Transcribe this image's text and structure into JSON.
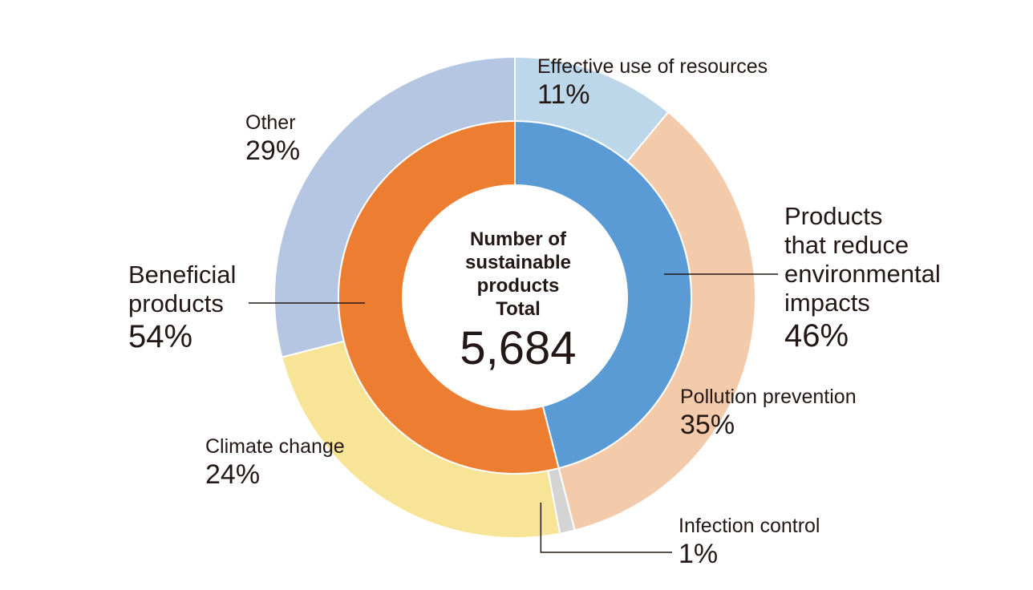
{
  "center": {
    "title": "Number of\nsustainable\nproducts\nTotal",
    "value": "5,684"
  },
  "labels": {
    "effective_use": {
      "name": "Effective use of resources",
      "pct": "11%"
    },
    "other": {
      "name": "Other",
      "pct": "29%"
    },
    "reduce_impacts": {
      "name": "Products\nthat reduce\nenvironmental\nimpacts",
      "pct": "46%"
    },
    "beneficial": {
      "name": "Beneficial\nproducts",
      "pct": "54%"
    },
    "pollution": {
      "name": "Pollution prevention",
      "pct": "35%"
    },
    "climate": {
      "name": "Climate change",
      "pct": "24%"
    },
    "infection": {
      "name": "Infection control",
      "pct": "1%"
    }
  },
  "chart_data": {
    "type": "pie",
    "total": 5684,
    "inner_ring": [
      {
        "name": "Products that reduce environmental impacts",
        "value": 46,
        "color": "#5b9bd5"
      },
      {
        "name": "Beneficial products",
        "value": 54,
        "color": "#ed7d31"
      }
    ],
    "outer_ring": [
      {
        "name": "Effective use of resources",
        "value": 11,
        "color": "#bdd7ea"
      },
      {
        "name": "Pollution prevention",
        "value": 35,
        "color": "#f3cbab"
      },
      {
        "name": "Infection control",
        "value": 1,
        "color": "#d4d4d4"
      },
      {
        "name": "Climate change",
        "value": 24,
        "color": "#f7e497"
      },
      {
        "name": "Other",
        "value": 29,
        "color": "#b4c6e1"
      }
    ],
    "colors": {
      "leader_line": "#231815",
      "separator": "#ffffff"
    }
  }
}
